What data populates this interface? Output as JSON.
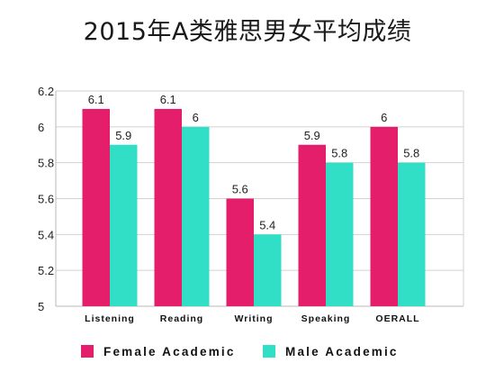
{
  "chart_data": {
    "type": "bar",
    "title": "2015年A类雅思男女平均成绩",
    "categories": [
      "Listening",
      "Reading",
      "Writing",
      "Speaking",
      "OERALL"
    ],
    "series": [
      {
        "name": "Female Academic",
        "values": [
          6.1,
          6.1,
          5.6,
          5.9,
          6
        ],
        "color": "#e41e6b"
      },
      {
        "name": "Male Academic",
        "values": [
          5.9,
          6,
          5.4,
          5.8,
          5.8
        ],
        "color": "#31dfc6"
      }
    ],
    "yticks": [
      5,
      5.2,
      5.4,
      5.6,
      5.8,
      6,
      6.2
    ],
    "ylim": [
      5,
      6.2
    ],
    "xlabel": "",
    "ylabel": "",
    "grid": true,
    "legend_position": "bottom"
  }
}
